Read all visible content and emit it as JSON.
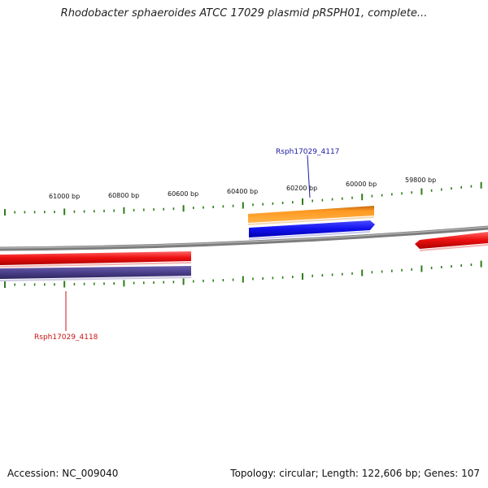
{
  "title": "Rhodobacter sphaeroides ATCC 17029 plasmid pRSPH01, complete...",
  "footer": {
    "accession": "Accession: NC_009040",
    "summary": "Topology: circular; Length: 122,606 bp; Genes: 107"
  },
  "ruler": {
    "labels": [
      "61000 bp",
      "60800 bp",
      "60600 bp",
      "60400 bp",
      "60200 bp",
      "60000 bp",
      "59800 bp"
    ]
  },
  "genes": {
    "upper_label": "Rsph17029_4117",
    "lower_label": "Rsph17029_4118"
  },
  "colors": {
    "tick": "#2e7d1a",
    "backbone": "#888888",
    "gene_red": "#ee1111",
    "gene_blue": "#1111ee",
    "gene_orange": "#ff9922",
    "gene_purple": "#4a3f8a",
    "label_blue": "#1a1aa6",
    "label_red": "#cc1111"
  }
}
